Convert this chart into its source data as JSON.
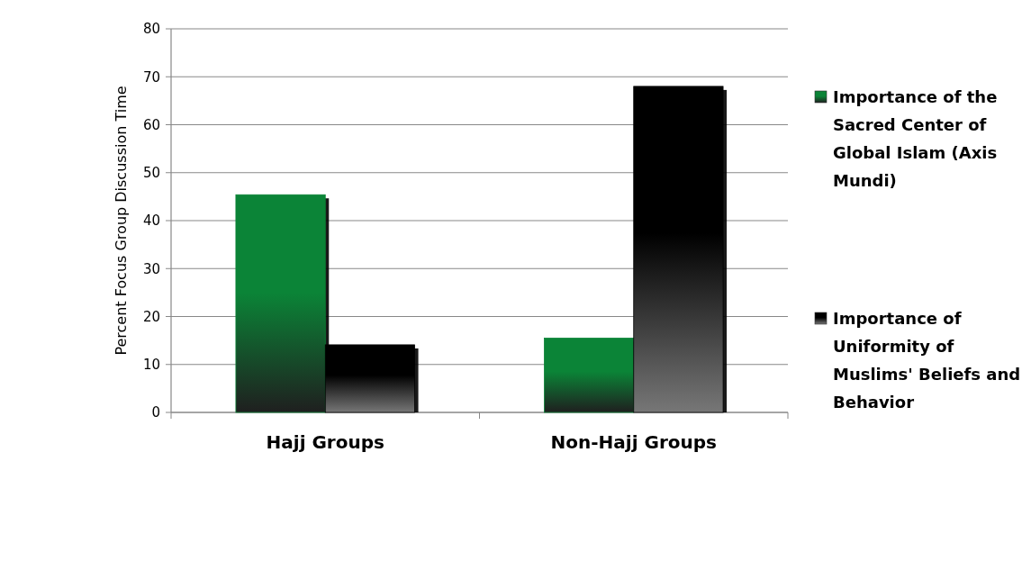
{
  "chart_data": {
    "type": "bar",
    "ylabel": "Percent Focus Group Discussion Time",
    "categories": [
      "Hajj Groups",
      "Non-Hajj Groups"
    ],
    "series": [
      {
        "name": "Importance of the Sacred Center of Global Islam (Axis Mundi)",
        "color": "#0b8437",
        "values": [
          45.4,
          15.5
        ]
      },
      {
        "name": "Importance of Uniformity of Muslims' Beliefs and Behavior",
        "color": "#000000",
        "values": [
          14.1,
          68
        ]
      }
    ],
    "ylim": [
      0,
      80
    ],
    "yticks": [
      0,
      10,
      20,
      30,
      40,
      50,
      60,
      70,
      80
    ],
    "grid": "y",
    "legend": "right"
  }
}
